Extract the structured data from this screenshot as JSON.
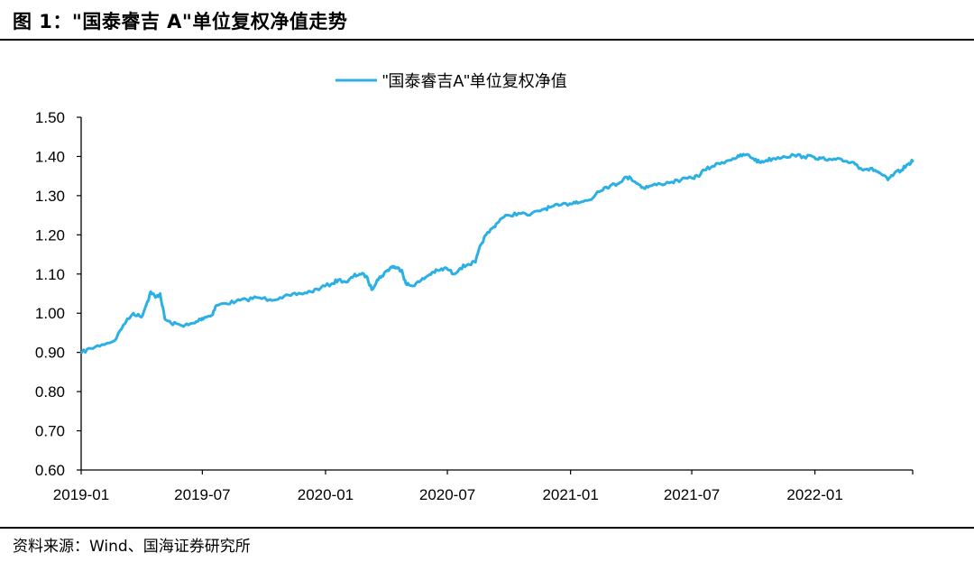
{
  "figure": {
    "title": "图 1：\"国泰睿吉 A\"单位复权净值走势",
    "source": "资料来源：Wind、国海证券研究所"
  },
  "colors": {
    "line": "#2BB0E6",
    "axis": "#000000",
    "text": "#000000"
  },
  "chart_data": {
    "type": "line",
    "title": "",
    "xlabel": "",
    "ylabel": "",
    "ylim": [
      0.6,
      1.5
    ],
    "y_ticks": [
      "0.60",
      "0.70",
      "0.80",
      "0.90",
      "1.00",
      "1.10",
      "1.20",
      "1.30",
      "1.40",
      "1.50"
    ],
    "x_ticks": [
      "2019-01",
      "2019-07",
      "2020-01",
      "2020-07",
      "2021-01",
      "2021-07",
      "2022-01"
    ],
    "xlim": [
      "2019-01-01",
      "2022-05-27"
    ],
    "grid": false,
    "legend": "top-center",
    "series": [
      {
        "name": "\"国泰睿吉A\"单位复权净值",
        "points": [
          [
            "2019-01-02",
            0.9
          ],
          [
            "2019-01-15",
            0.91
          ],
          [
            "2019-02-01",
            0.92
          ],
          [
            "2019-02-20",
            0.93
          ],
          [
            "2019-03-05",
            0.97
          ],
          [
            "2019-03-20",
            1.0
          ],
          [
            "2019-04-01",
            0.99
          ],
          [
            "2019-04-10",
            1.03
          ],
          [
            "2019-04-15",
            1.055
          ],
          [
            "2019-04-22",
            1.04
          ],
          [
            "2019-04-29",
            1.05
          ],
          [
            "2019-05-06",
            0.985
          ],
          [
            "2019-05-15",
            0.975
          ],
          [
            "2019-05-29",
            0.97
          ],
          [
            "2019-06-10",
            0.97
          ],
          [
            "2019-06-20",
            0.975
          ],
          [
            "2019-06-28",
            0.985
          ],
          [
            "2019-07-05",
            0.99
          ],
          [
            "2019-07-15",
            0.995
          ],
          [
            "2019-07-22",
            1.02
          ],
          [
            "2019-08-05",
            1.025
          ],
          [
            "2019-08-20",
            1.03
          ],
          [
            "2019-09-05",
            1.035
          ],
          [
            "2019-09-20",
            1.04
          ],
          [
            "2019-10-10",
            1.035
          ],
          [
            "2019-10-25",
            1.04
          ],
          [
            "2019-11-10",
            1.045
          ],
          [
            "2019-11-25",
            1.05
          ],
          [
            "2019-12-10",
            1.055
          ],
          [
            "2019-12-25",
            1.065
          ],
          [
            "2020-01-10",
            1.075
          ],
          [
            "2020-01-20",
            1.085
          ],
          [
            "2020-02-03",
            1.08
          ],
          [
            "2020-02-12",
            1.095
          ],
          [
            "2020-02-21",
            1.1
          ],
          [
            "2020-03-02",
            1.095
          ],
          [
            "2020-03-10",
            1.06
          ],
          [
            "2020-03-18",
            1.085
          ],
          [
            "2020-03-25",
            1.095
          ],
          [
            "2020-04-03",
            1.11
          ],
          [
            "2020-04-10",
            1.12
          ],
          [
            "2020-04-17",
            1.115
          ],
          [
            "2020-04-24",
            1.11
          ],
          [
            "2020-04-30",
            1.075
          ],
          [
            "2020-05-08",
            1.07
          ],
          [
            "2020-05-20",
            1.08
          ],
          [
            "2020-06-01",
            1.095
          ],
          [
            "2020-06-10",
            1.105
          ],
          [
            "2020-06-20",
            1.11
          ],
          [
            "2020-06-30",
            1.115
          ],
          [
            "2020-07-10",
            1.1
          ],
          [
            "2020-07-20",
            1.115
          ],
          [
            "2020-08-01",
            1.125
          ],
          [
            "2020-08-12",
            1.13
          ],
          [
            "2020-08-20",
            1.175
          ],
          [
            "2020-08-28",
            1.2
          ],
          [
            "2020-09-08",
            1.22
          ],
          [
            "2020-09-18",
            1.24
          ],
          [
            "2020-10-01",
            1.25
          ],
          [
            "2020-10-15",
            1.255
          ],
          [
            "2020-11-01",
            1.25
          ],
          [
            "2020-11-20",
            1.265
          ],
          [
            "2020-12-01",
            1.27
          ],
          [
            "2020-12-15",
            1.275
          ],
          [
            "2020-12-31",
            1.28
          ],
          [
            "2021-01-10",
            1.285
          ],
          [
            "2021-01-20",
            1.285
          ],
          [
            "2021-02-01",
            1.29
          ],
          [
            "2021-02-10",
            1.31
          ],
          [
            "2021-02-20",
            1.32
          ],
          [
            "2021-03-01",
            1.325
          ],
          [
            "2021-03-12",
            1.33
          ],
          [
            "2021-03-22",
            1.345
          ],
          [
            "2021-04-01",
            1.345
          ],
          [
            "2021-04-12",
            1.33
          ],
          [
            "2021-04-20",
            1.32
          ],
          [
            "2021-05-01",
            1.325
          ],
          [
            "2021-05-15",
            1.33
          ],
          [
            "2021-06-01",
            1.335
          ],
          [
            "2021-06-15",
            1.34
          ],
          [
            "2021-07-01",
            1.345
          ],
          [
            "2021-07-10",
            1.35
          ],
          [
            "2021-07-20",
            1.365
          ],
          [
            "2021-08-01",
            1.375
          ],
          [
            "2021-08-15",
            1.385
          ],
          [
            "2021-09-01",
            1.395
          ],
          [
            "2021-09-10",
            1.4
          ],
          [
            "2021-09-20",
            1.405
          ],
          [
            "2021-10-01",
            1.395
          ],
          [
            "2021-10-10",
            1.385
          ],
          [
            "2021-10-20",
            1.39
          ],
          [
            "2021-11-01",
            1.395
          ],
          [
            "2021-11-15",
            1.4
          ],
          [
            "2021-12-01",
            1.403
          ],
          [
            "2021-12-15",
            1.4
          ],
          [
            "2021-12-31",
            1.398
          ],
          [
            "2022-01-10",
            1.395
          ],
          [
            "2022-01-20",
            1.39
          ],
          [
            "2022-02-01",
            1.392
          ],
          [
            "2022-02-15",
            1.388
          ],
          [
            "2022-02-28",
            1.385
          ],
          [
            "2022-03-10",
            1.37
          ],
          [
            "2022-03-20",
            1.368
          ],
          [
            "2022-04-01",
            1.365
          ],
          [
            "2022-04-10",
            1.355
          ],
          [
            "2022-04-20",
            1.34
          ],
          [
            "2022-04-29",
            1.355
          ],
          [
            "2022-05-10",
            1.365
          ],
          [
            "2022-05-20",
            1.38
          ],
          [
            "2022-05-27",
            1.388
          ]
        ]
      }
    ]
  }
}
